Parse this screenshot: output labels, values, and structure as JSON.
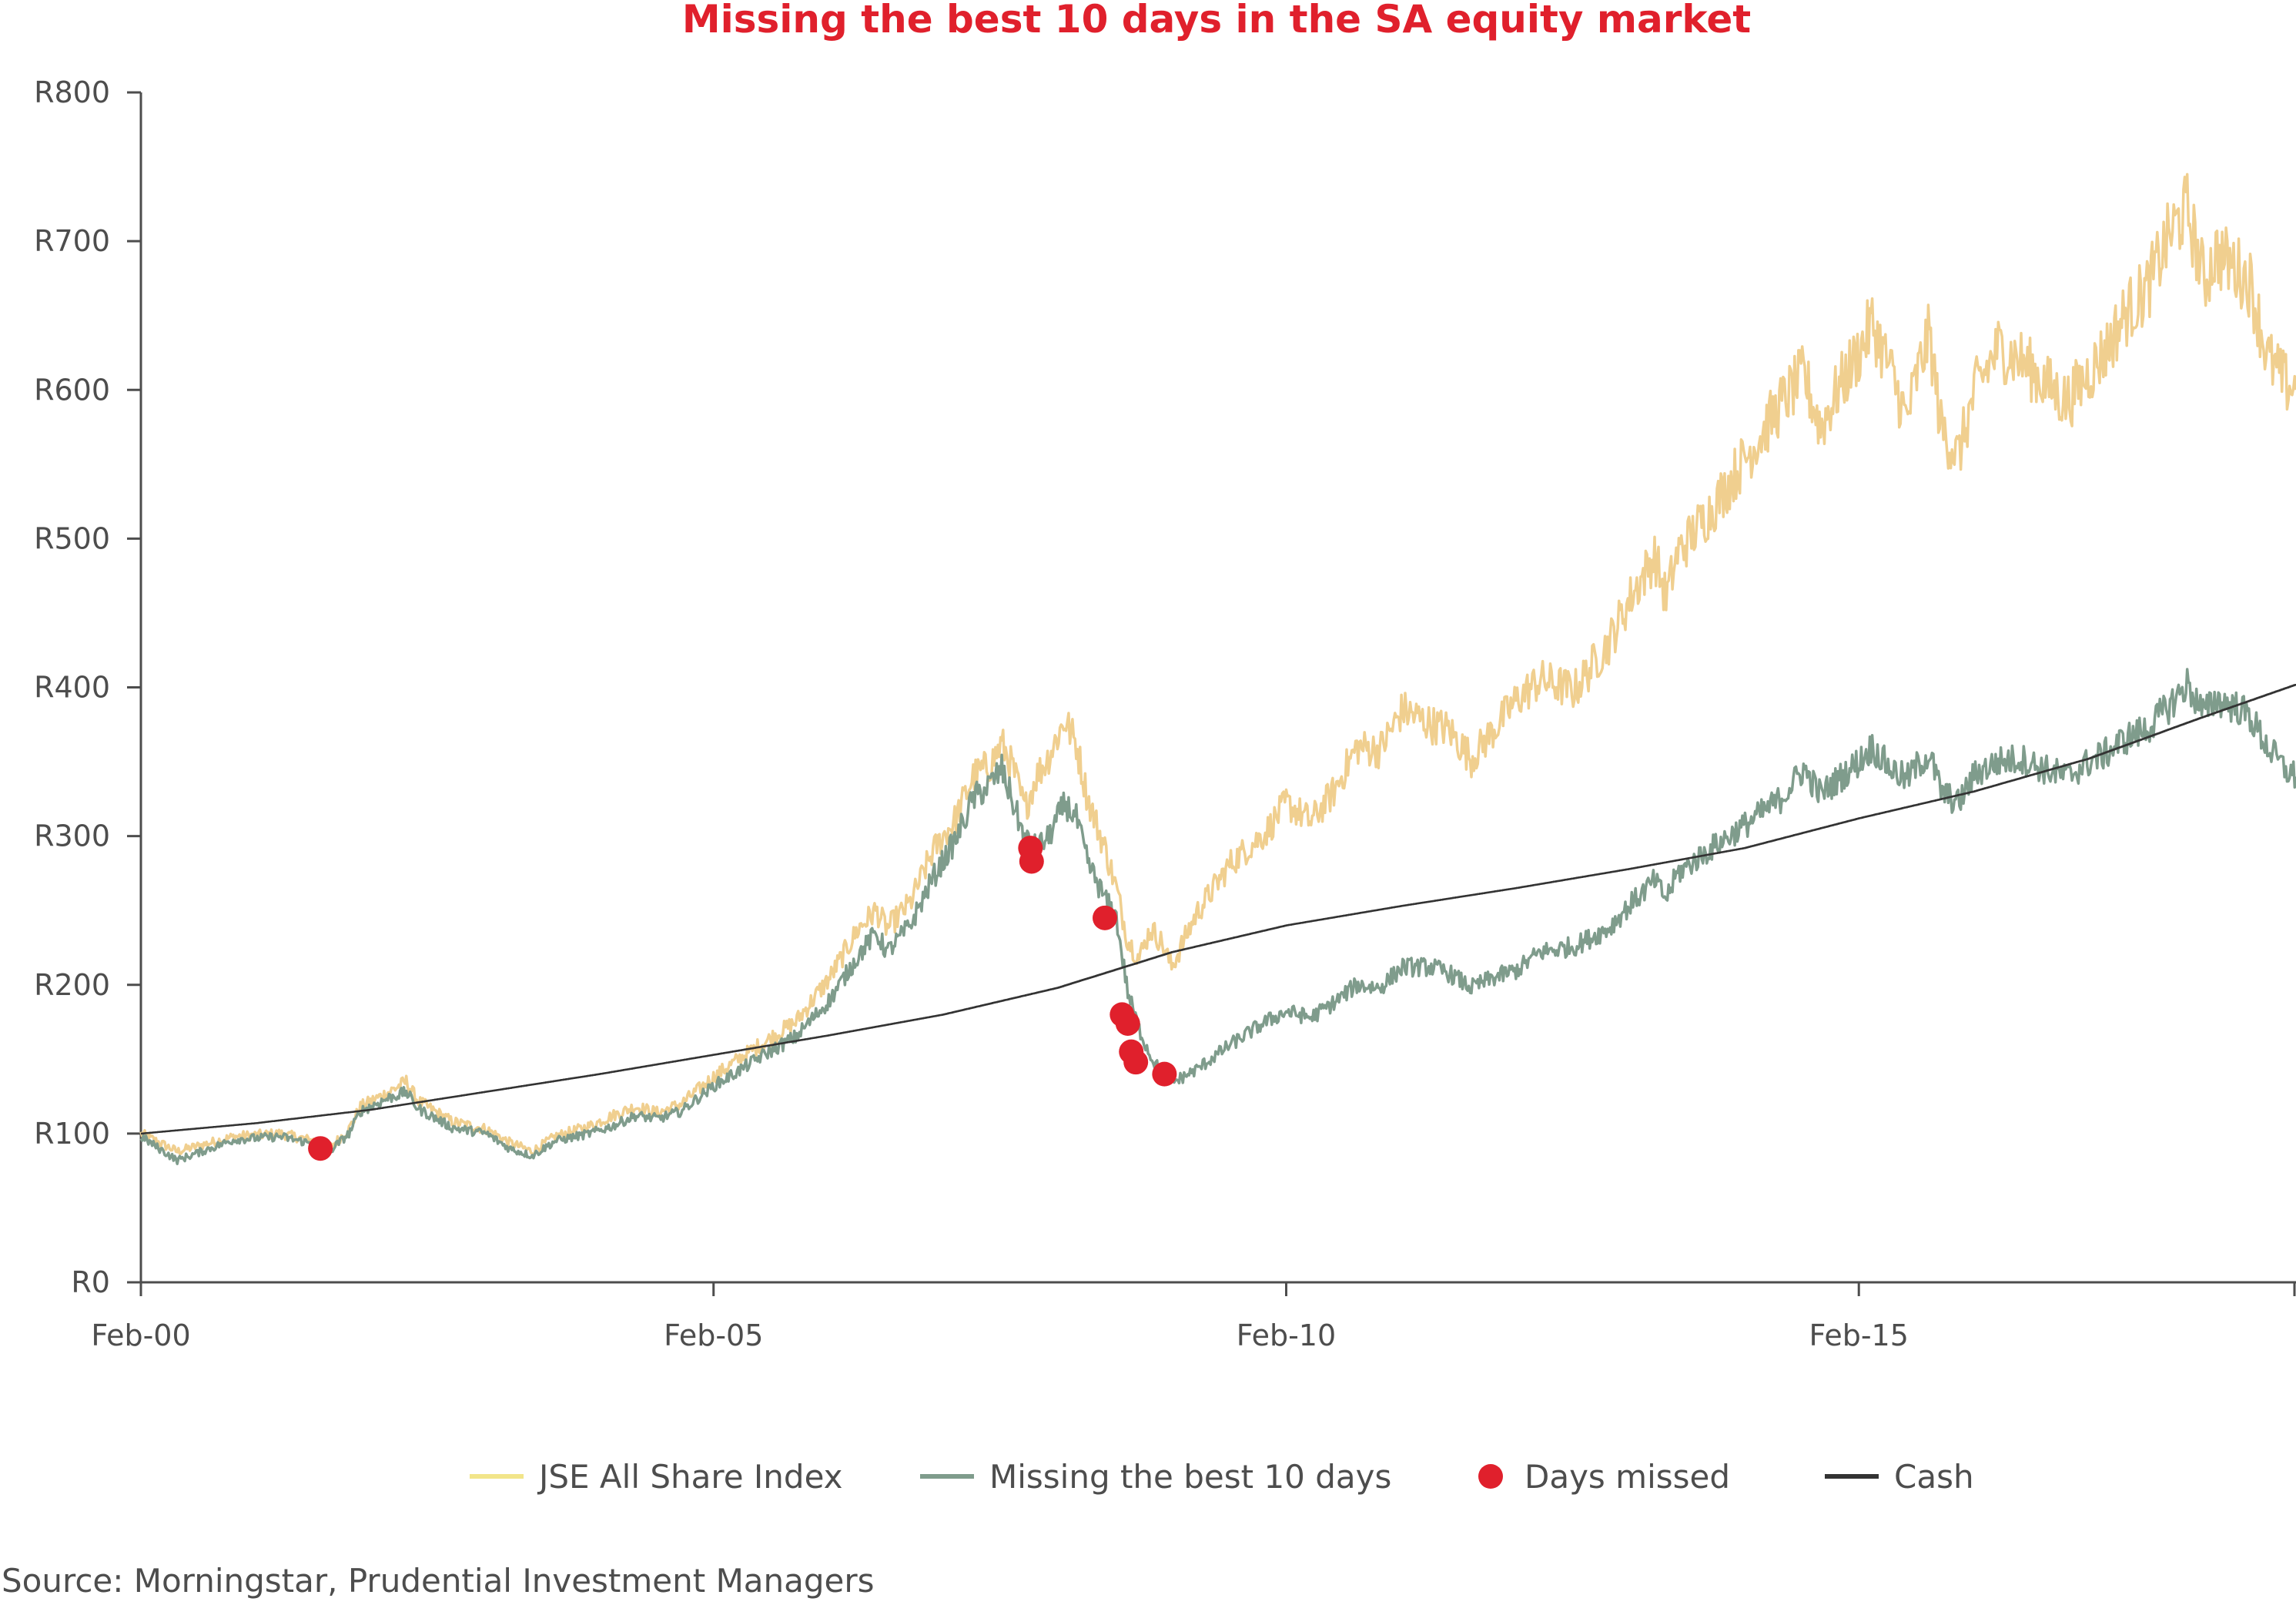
{
  "chart_data": {
    "type": "line",
    "title": "Missing the best 10 days in the SA equity market",
    "xlabel": "",
    "ylabel": "",
    "x_ticks": [
      "Feb-00",
      "Feb-05",
      "Feb-10",
      "Feb-15"
    ],
    "x_tick_values": [
      2000.083,
      2005.083,
      2010.083,
      2015.083
    ],
    "xlim": [
      2000.083,
      2018.9
    ],
    "y_ticks": [
      "R0",
      "R100",
      "R200",
      "R300",
      "R400",
      "R500",
      "R600",
      "R700",
      "R800"
    ],
    "y_tick_values": [
      0,
      100,
      200,
      300,
      400,
      500,
      600,
      700,
      800
    ],
    "ylim": [
      0,
      800
    ],
    "grid": false,
    "legend_position": "bottom",
    "series": [
      {
        "name": "JSE All Share Index",
        "color": "#f0cf8f",
        "legend_color": "#f2e58a",
        "points": [
          [
            2000.083,
            100
          ],
          [
            2000.4,
            88
          ],
          [
            2000.9,
            98
          ],
          [
            2001.3,
            100
          ],
          [
            2001.6,
            95
          ],
          [
            2001.7,
            88
          ],
          [
            2001.9,
            103
          ],
          [
            2002.0,
            118
          ],
          [
            2002.25,
            128
          ],
          [
            2002.4,
            135
          ],
          [
            2002.5,
            122
          ],
          [
            2002.8,
            108
          ],
          [
            2003.1,
            103
          ],
          [
            2003.3,
            94
          ],
          [
            2003.5,
            88
          ],
          [
            2003.7,
            98
          ],
          [
            2004.0,
            105
          ],
          [
            2004.2,
            112
          ],
          [
            2004.4,
            118
          ],
          [
            2004.6,
            114
          ],
          [
            2004.8,
            120
          ],
          [
            2005.083,
            138
          ],
          [
            2005.3,
            150
          ],
          [
            2005.5,
            160
          ],
          [
            2005.8,
            175
          ],
          [
            2006.1,
            205
          ],
          [
            2006.35,
            238
          ],
          [
            2006.5,
            250
          ],
          [
            2006.6,
            238
          ],
          [
            2006.8,
            255
          ],
          [
            2007.0,
            290
          ],
          [
            2007.2,
            312
          ],
          [
            2007.35,
            340
          ],
          [
            2007.5,
            348
          ],
          [
            2007.6,
            362
          ],
          [
            2007.7,
            345
          ],
          [
            2007.8,
            318
          ],
          [
            2007.9,
            340
          ],
          [
            2008.0,
            352
          ],
          [
            2008.15,
            378
          ],
          [
            2008.25,
            362
          ],
          [
            2008.35,
            325
          ],
          [
            2008.5,
            292
          ],
          [
            2008.6,
            265
          ],
          [
            2008.7,
            230
          ],
          [
            2008.8,
            218
          ],
          [
            2008.9,
            238
          ],
          [
            2009.0,
            228
          ],
          [
            2009.083,
            212
          ],
          [
            2009.3,
            248
          ],
          [
            2009.6,
            282
          ],
          [
            2009.9,
            302
          ],
          [
            2010.083,
            322
          ],
          [
            2010.3,
            310
          ],
          [
            2010.5,
            330
          ],
          [
            2010.7,
            360
          ],
          [
            2010.9,
            358
          ],
          [
            2011.1,
            385
          ],
          [
            2011.35,
            375
          ],
          [
            2011.5,
            372
          ],
          [
            2011.7,
            352
          ],
          [
            2011.9,
            372
          ],
          [
            2012.1,
            392
          ],
          [
            2012.3,
            405
          ],
          [
            2012.6,
            398
          ],
          [
            2012.9,
            430
          ],
          [
            2013.1,
            462
          ],
          [
            2013.3,
            488
          ],
          [
            2013.4,
            460
          ],
          [
            2013.5,
            490
          ],
          [
            2013.8,
            520
          ],
          [
            2014.1,
            555
          ],
          [
            2014.4,
            590
          ],
          [
            2014.6,
            610
          ],
          [
            2014.75,
            575
          ],
          [
            2014.9,
            600
          ],
          [
            2015.083,
            625
          ],
          [
            2015.2,
            645
          ],
          [
            2015.35,
            615
          ],
          [
            2015.5,
            580
          ],
          [
            2015.6,
            612
          ],
          [
            2015.7,
            638
          ],
          [
            2015.8,
            575
          ],
          [
            2015.95,
            555
          ],
          [
            2016.1,
            600
          ],
          [
            2016.3,
            628
          ],
          [
            2016.5,
            620
          ],
          [
            2016.7,
            605
          ],
          [
            2016.9,
            592
          ],
          [
            2017.1,
            612
          ],
          [
            2017.25,
            628
          ],
          [
            2017.4,
            650
          ],
          [
            2017.6,
            668
          ],
          [
            2017.8,
            705
          ],
          [
            2017.95,
            722
          ],
          [
            2018.1,
            672
          ],
          [
            2018.2,
            692
          ],
          [
            2018.4,
            680
          ],
          [
            2018.5,
            672
          ],
          [
            2018.65,
            622
          ],
          [
            2018.8,
            605
          ],
          [
            2018.9,
            600
          ]
        ]
      },
      {
        "name": "Missing the best 10 days",
        "color": "#7f9c8c",
        "legend_color": "#7f9c8c",
        "points": [
          [
            2000.083,
            98
          ],
          [
            2000.4,
            82
          ],
          [
            2000.9,
            96
          ],
          [
            2001.3,
            98
          ],
          [
            2001.6,
            93
          ],
          [
            2001.7,
            86
          ],
          [
            2001.9,
            100
          ],
          [
            2002.0,
            115
          ],
          [
            2002.25,
            124
          ],
          [
            2002.4,
            128
          ],
          [
            2002.5,
            117
          ],
          [
            2002.8,
            104
          ],
          [
            2003.1,
            100
          ],
          [
            2003.3,
            90
          ],
          [
            2003.5,
            85
          ],
          [
            2003.7,
            95
          ],
          [
            2004.0,
            100
          ],
          [
            2004.2,
            105
          ],
          [
            2004.4,
            112
          ],
          [
            2004.6,
            110
          ],
          [
            2004.8,
            115
          ],
          [
            2005.083,
            132
          ],
          [
            2005.3,
            142
          ],
          [
            2005.5,
            152
          ],
          [
            2005.8,
            165
          ],
          [
            2006.1,
            190
          ],
          [
            2006.35,
            220
          ],
          [
            2006.5,
            235
          ],
          [
            2006.6,
            222
          ],
          [
            2006.8,
            240
          ],
          [
            2007.0,
            272
          ],
          [
            2007.2,
            298
          ],
          [
            2007.35,
            325
          ],
          [
            2007.5,
            335
          ],
          [
            2007.6,
            345
          ],
          [
            2007.7,
            322
          ],
          [
            2007.8,
            298
          ],
          [
            2007.9,
            292
          ],
          [
            2008.0,
            298
          ],
          [
            2008.15,
            322
          ],
          [
            2008.25,
            312
          ],
          [
            2008.35,
            282
          ],
          [
            2008.5,
            258
          ],
          [
            2008.6,
            245
          ],
          [
            2008.7,
            195
          ],
          [
            2008.8,
            170
          ],
          [
            2008.9,
            152
          ],
          [
            2009.0,
            140
          ],
          [
            2009.083,
            134
          ],
          [
            2009.3,
            143
          ],
          [
            2009.6,
            160
          ],
          [
            2009.9,
            175
          ],
          [
            2010.083,
            182
          ],
          [
            2010.3,
            178
          ],
          [
            2010.5,
            188
          ],
          [
            2010.7,
            200
          ],
          [
            2010.9,
            198
          ],
          [
            2011.1,
            212
          ],
          [
            2011.35,
            212
          ],
          [
            2011.5,
            208
          ],
          [
            2011.7,
            198
          ],
          [
            2011.9,
            205
          ],
          [
            2012.1,
            210
          ],
          [
            2012.3,
            222
          ],
          [
            2012.6,
            226
          ],
          [
            2012.9,
            238
          ],
          [
            2013.1,
            255
          ],
          [
            2013.3,
            270
          ],
          [
            2013.4,
            258
          ],
          [
            2013.5,
            275
          ],
          [
            2013.8,
            292
          ],
          [
            2014.1,
            308
          ],
          [
            2014.4,
            325
          ],
          [
            2014.6,
            345
          ],
          [
            2014.75,
            328
          ],
          [
            2014.9,
            338
          ],
          [
            2015.083,
            350
          ],
          [
            2015.2,
            360
          ],
          [
            2015.35,
            346
          ],
          [
            2015.5,
            338
          ],
          [
            2015.6,
            348
          ],
          [
            2015.7,
            355
          ],
          [
            2015.8,
            330
          ],
          [
            2015.95,
            322
          ],
          [
            2016.1,
            342
          ],
          [
            2016.3,
            350
          ],
          [
            2016.5,
            352
          ],
          [
            2016.7,
            345
          ],
          [
            2016.9,
            340
          ],
          [
            2017.1,
            350
          ],
          [
            2017.25,
            356
          ],
          [
            2017.4,
            365
          ],
          [
            2017.6,
            372
          ],
          [
            2017.8,
            388
          ],
          [
            2017.95,
            402
          ],
          [
            2018.1,
            382
          ],
          [
            2018.2,
            392
          ],
          [
            2018.4,
            386
          ],
          [
            2018.5,
            380
          ],
          [
            2018.65,
            360
          ],
          [
            2018.8,
            345
          ],
          [
            2018.9,
            340
          ]
        ]
      },
      {
        "name": "Cash",
        "color": "#333333",
        "legend_color": "#333333",
        "points": [
          [
            2000.083,
            100
          ],
          [
            2001.083,
            107
          ],
          [
            2002.083,
            116
          ],
          [
            2003.083,
            128
          ],
          [
            2004.083,
            140
          ],
          [
            2005.083,
            153
          ],
          [
            2006.083,
            166
          ],
          [
            2007.083,
            180
          ],
          [
            2008.083,
            198
          ],
          [
            2009.083,
            222
          ],
          [
            2010.083,
            240
          ],
          [
            2011.083,
            253
          ],
          [
            2012.083,
            265
          ],
          [
            2013.083,
            278
          ],
          [
            2014.083,
            292
          ],
          [
            2015.083,
            312
          ],
          [
            2016.083,
            330
          ],
          [
            2017.083,
            352
          ],
          [
            2018.083,
            380
          ],
          [
            2018.9,
            402
          ]
        ]
      }
    ],
    "markers": {
      "name": "Days missed",
      "color": "#e0202c",
      "points": [
        [
          2001.65,
          90
        ],
        [
          2007.85,
          292
        ],
        [
          2007.86,
          283
        ],
        [
          2008.5,
          245
        ],
        [
          2008.65,
          180
        ],
        [
          2008.7,
          174
        ],
        [
          2008.73,
          155
        ],
        [
          2008.77,
          148
        ],
        [
          2009.02,
          140
        ]
      ]
    },
    "colors": {
      "title": "#e0202c",
      "axis": "#4d4d4d",
      "text": "#4d4d4d"
    }
  },
  "source": "Source: Morningstar, Prudential Investment Managers"
}
